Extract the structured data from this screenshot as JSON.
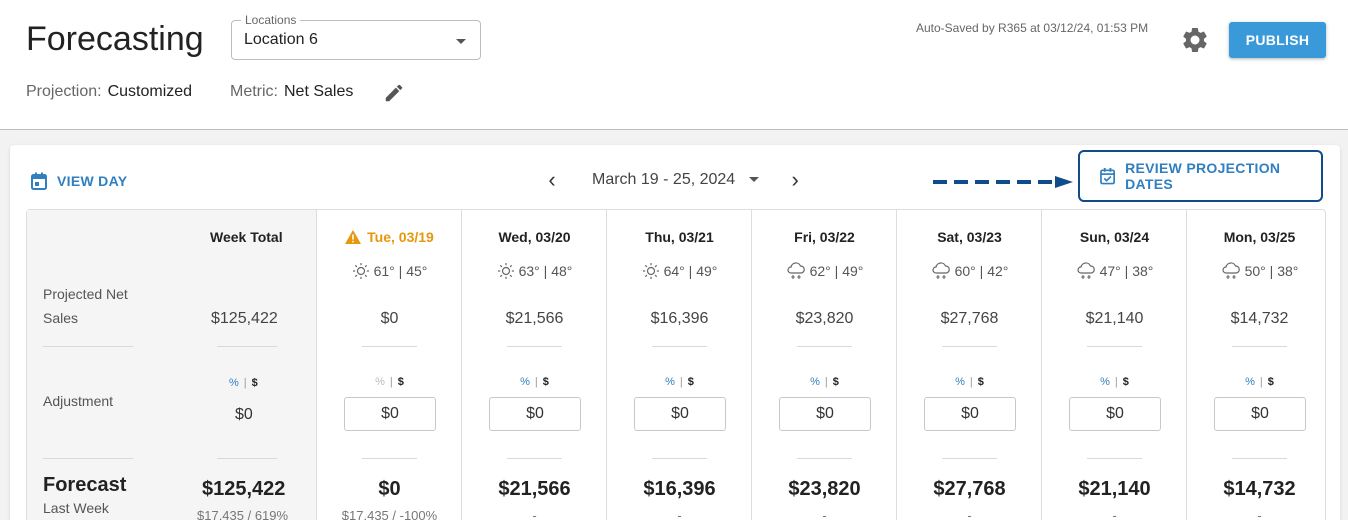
{
  "header": {
    "title": "Forecasting",
    "locations_label": "Locations",
    "location_value": "Location 6",
    "projection_label": "Projection:",
    "projection_value": "Customized",
    "metric_label": "Metric:",
    "metric_value": "Net Sales",
    "autosave": "Auto-Saved by R365 at 03/12/24, 01:53 PM",
    "publish_label": "PUBLISH"
  },
  "toolbar": {
    "view_day_label": "VIEW DAY",
    "date_range": "March 19 - 25, 2024",
    "prev": "‹",
    "next": "›",
    "review_label": "REVIEW PROJECTION DATES"
  },
  "labels": {
    "projected": "Projected Net Sales",
    "adjustment": "Adjustment",
    "forecast": "Forecast",
    "last_week": "Last Week",
    "pct": "%",
    "bar": "|",
    "usd": "$"
  },
  "week": {
    "header": "Week Total",
    "projected": "$125,422",
    "adjustment": "$0",
    "forecast": "$125,422",
    "last_week": "$17,435 / 619%"
  },
  "days": [
    {
      "label": "Tue, 03/19",
      "warning": true,
      "weather": "sun",
      "temps": "61° | 45°",
      "projected": "$0",
      "adjustment": "$0",
      "forecast": "$0",
      "last_week": "$17,435 / -100%",
      "pct_dim": true
    },
    {
      "label": "Wed, 03/20",
      "warning": false,
      "weather": "sun",
      "temps": "63° | 48°",
      "projected": "$21,566",
      "adjustment": "$0",
      "forecast": "$21,566",
      "last_week": "-",
      "pct_dim": false
    },
    {
      "label": "Thu, 03/21",
      "warning": false,
      "weather": "sun",
      "temps": "64° | 49°",
      "projected": "$16,396",
      "adjustment": "$0",
      "forecast": "$16,396",
      "last_week": "-",
      "pct_dim": false
    },
    {
      "label": "Fri, 03/22",
      "warning": false,
      "weather": "snow",
      "temps": "62° | 49°",
      "projected": "$23,820",
      "adjustment": "$0",
      "forecast": "$23,820",
      "last_week": "-",
      "pct_dim": false
    },
    {
      "label": "Sat, 03/23",
      "warning": false,
      "weather": "snow",
      "temps": "60° | 42°",
      "projected": "$27,768",
      "adjustment": "$0",
      "forecast": "$27,768",
      "last_week": "-",
      "pct_dim": false
    },
    {
      "label": "Sun, 03/24",
      "warning": false,
      "weather": "snow",
      "temps": "47° | 38°",
      "projected": "$21,140",
      "adjustment": "$0",
      "forecast": "$21,140",
      "last_week": "-",
      "pct_dim": false
    },
    {
      "label": "Mon, 03/25",
      "warning": false,
      "weather": "snow",
      "temps": "50° | 38°",
      "projected": "$14,732",
      "adjustment": "$0",
      "forecast": "$14,732",
      "last_week": "-",
      "pct_dim": false
    }
  ],
  "colors": {
    "accent": "#2f7fc1",
    "publish": "#3a9ad9",
    "warning": "#e8960c",
    "highlight_border": "#0f4c8a"
  }
}
